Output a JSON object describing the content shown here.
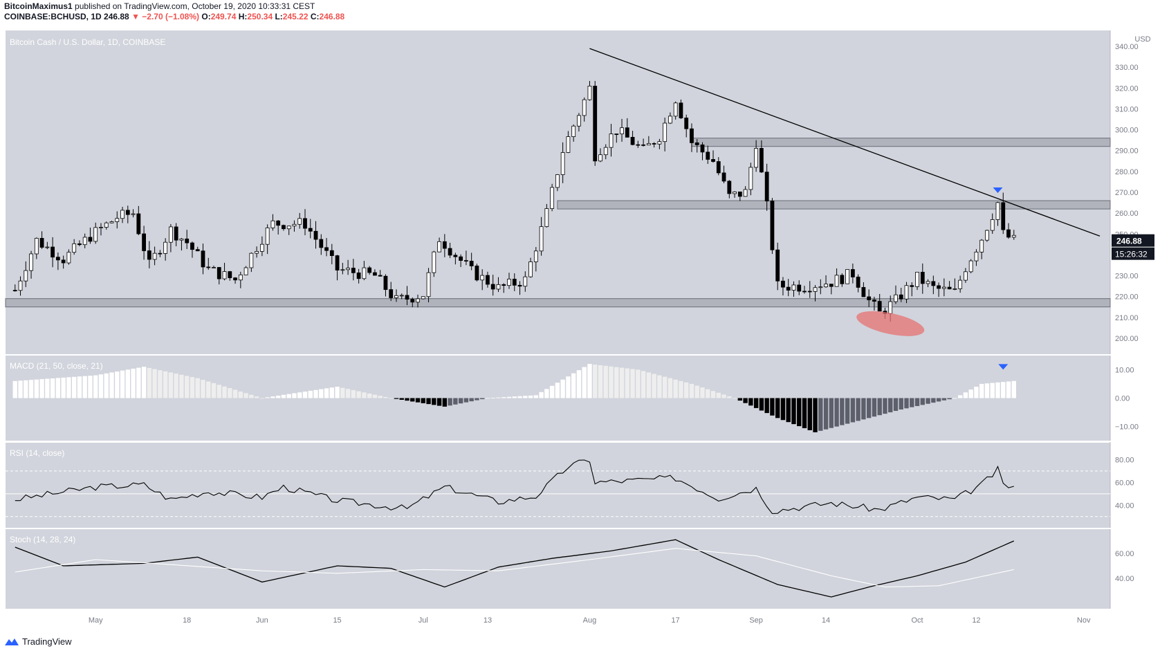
{
  "header": {
    "author": "BitcoinMaximus1",
    "published": "published on TradingView.com, October 19, 2020 10:33:31 CEST",
    "symbol": "COINBASE:BCHUSD, 1D",
    "last": "246.88",
    "change": "▼ −2.70 (−1.08%)",
    "o_label": "O:",
    "o": "249.74",
    "h_label": "H:",
    "h": "250.34",
    "l_label": "L:",
    "l": "245.22",
    "c_label": "C:",
    "c": "246.88"
  },
  "footer": {
    "brand": "TradingView"
  },
  "colors": {
    "pane_bg": "#d1d4dc",
    "candle_up": "#ffffff",
    "candle_down": "#000000",
    "zone": "#9598a1",
    "highlight": "#e57373",
    "marker": "#2962ff"
  },
  "chart_data": [
    {
      "type": "candlestick",
      "title": "Bitcoin Cash / U.S. Dollar, 1D, COINBASE",
      "currency_label": "USD",
      "ylim": [
        195,
        345
      ],
      "y_ticks": [
        "340.00",
        "330.00",
        "320.00",
        "310.00",
        "300.00",
        "290.00",
        "280.00",
        "270.00",
        "260.00",
        "250.00",
        "240.00",
        "230.00",
        "220.00",
        "210.00",
        "200.00"
      ],
      "x_ticks": [
        "May",
        "18",
        "Jun",
        "15",
        "Jul",
        "13",
        "Aug",
        "17",
        "Sep",
        "14",
        "Oct",
        "12",
        "Nov"
      ],
      "x_tick_dates": [
        "2020-05-01",
        "2020-05-18",
        "2020-06-01",
        "2020-06-15",
        "2020-07-01",
        "2020-07-13",
        "2020-08-01",
        "2020-08-17",
        "2020-09-01",
        "2020-09-14",
        "2020-10-01",
        "2020-10-12",
        "2020-11-01"
      ],
      "last_price_label": "246.88",
      "countdown_label": "15:26:32",
      "close_series": [
        {
          "date": "2020-04-16",
          "close": 223
        },
        {
          "date": "2020-04-20",
          "close": 247
        },
        {
          "date": "2020-04-25",
          "close": 238
        },
        {
          "date": "2020-04-30",
          "close": 249
        },
        {
          "date": "2020-05-05",
          "close": 258
        },
        {
          "date": "2020-05-08",
          "close": 260
        },
        {
          "date": "2020-05-11",
          "close": 235
        },
        {
          "date": "2020-05-15",
          "close": 252
        },
        {
          "date": "2020-05-18",
          "close": 246
        },
        {
          "date": "2020-05-22",
          "close": 233
        },
        {
          "date": "2020-05-27",
          "close": 228
        },
        {
          "date": "2020-06-01",
          "close": 248
        },
        {
          "date": "2020-06-03",
          "close": 255
        },
        {
          "date": "2020-06-09",
          "close": 255
        },
        {
          "date": "2020-06-15",
          "close": 233
        },
        {
          "date": "2020-06-22",
          "close": 230
        },
        {
          "date": "2020-06-26",
          "close": 218
        },
        {
          "date": "2020-07-01",
          "close": 221
        },
        {
          "date": "2020-07-04",
          "close": 248
        },
        {
          "date": "2020-07-10",
          "close": 232
        },
        {
          "date": "2020-07-15",
          "close": 224
        },
        {
          "date": "2020-07-20",
          "close": 228
        },
        {
          "date": "2020-07-24",
          "close": 260
        },
        {
          "date": "2020-07-27",
          "close": 290
        },
        {
          "date": "2020-08-01",
          "close": 320
        },
        {
          "date": "2020-08-02",
          "close": 288
        },
        {
          "date": "2020-08-06",
          "close": 300
        },
        {
          "date": "2020-08-11",
          "close": 290
        },
        {
          "date": "2020-08-14",
          "close": 297
        },
        {
          "date": "2020-08-17",
          "close": 315
        },
        {
          "date": "2020-08-20",
          "close": 294
        },
        {
          "date": "2020-08-24",
          "close": 285
        },
        {
          "date": "2020-08-27",
          "close": 268
        },
        {
          "date": "2020-08-30",
          "close": 270
        },
        {
          "date": "2020-09-01",
          "close": 294
        },
        {
          "date": "2020-09-03",
          "close": 263
        },
        {
          "date": "2020-09-05",
          "close": 225
        },
        {
          "date": "2020-09-10",
          "close": 225
        },
        {
          "date": "2020-09-15",
          "close": 227
        },
        {
          "date": "2020-09-19",
          "close": 231
        },
        {
          "date": "2020-09-22",
          "close": 218
        },
        {
          "date": "2020-09-24",
          "close": 212
        },
        {
          "date": "2020-09-27",
          "close": 218
        },
        {
          "date": "2020-10-01",
          "close": 229
        },
        {
          "date": "2020-10-04",
          "close": 224
        },
        {
          "date": "2020-10-08",
          "close": 222
        },
        {
          "date": "2020-10-10",
          "close": 234
        },
        {
          "date": "2020-10-13",
          "close": 248
        },
        {
          "date": "2020-10-16",
          "close": 265
        },
        {
          "date": "2020-10-17",
          "close": 250
        },
        {
          "date": "2020-10-19",
          "close": 246.88
        }
      ],
      "horizontal_zones": [
        {
          "from": 215,
          "to": 219
        },
        {
          "from": 262,
          "to": 266
        },
        {
          "from": 292,
          "to": 296
        }
      ],
      "trendline": [
        {
          "date": "2020-08-01",
          "price": 339
        },
        {
          "date": "2020-11-04",
          "price": 249
        }
      ],
      "highlight_ellipse": {
        "date": "2020-09-26",
        "price": 207
      },
      "markers": [
        {
          "date": "2020-10-16",
          "price": 271,
          "shape": "down-triangle"
        }
      ]
    },
    {
      "type": "bar",
      "title": "MACD (21, 50, close, 21)",
      "ylim": [
        -13,
        13
      ],
      "y_ticks": [
        "10.00",
        "0.00",
        "−10.00"
      ],
      "histogram_series": [
        {
          "date": "2020-04-16",
          "value": 6
        },
        {
          "date": "2020-05-01",
          "value": 8
        },
        {
          "date": "2020-05-10",
          "value": 11
        },
        {
          "date": "2020-05-20",
          "value": 7
        },
        {
          "date": "2020-06-01",
          "value": 0
        },
        {
          "date": "2020-06-15",
          "value": 4
        },
        {
          "date": "2020-06-25",
          "value": 0
        },
        {
          "date": "2020-07-05",
          "value": -3
        },
        {
          "date": "2020-07-13",
          "value": 0
        },
        {
          "date": "2020-07-22",
          "value": 1
        },
        {
          "date": "2020-08-01",
          "value": 12
        },
        {
          "date": "2020-08-10",
          "value": 10
        },
        {
          "date": "2020-08-20",
          "value": 5
        },
        {
          "date": "2020-08-28",
          "value": 0
        },
        {
          "date": "2020-09-05",
          "value": -7
        },
        {
          "date": "2020-09-12",
          "value": -12
        },
        {
          "date": "2020-09-20",
          "value": -8
        },
        {
          "date": "2020-09-28",
          "value": -4
        },
        {
          "date": "2020-10-08",
          "value": 0
        },
        {
          "date": "2020-10-13",
          "value": 5
        },
        {
          "date": "2020-10-19",
          "value": 6
        }
      ],
      "markers": [
        {
          "date": "2020-10-17",
          "value": 10,
          "shape": "down-triangle"
        }
      ]
    },
    {
      "type": "line",
      "title": "RSI (14, close)",
      "ylim": [
        25,
        90
      ],
      "y_ticks": [
        "80.00",
        "60.00",
        "40.00"
      ],
      "bands": [
        30,
        50,
        70
      ],
      "series": [
        {
          "values_by_date": [
            {
              "date": "2020-04-16",
              "value": 45
            },
            {
              "date": "2020-05-01",
              "value": 56
            },
            {
              "date": "2020-05-10",
              "value": 58
            },
            {
              "date": "2020-05-15",
              "value": 45
            },
            {
              "date": "2020-05-22",
              "value": 52
            },
            {
              "date": "2020-06-01",
              "value": 47
            },
            {
              "date": "2020-06-05",
              "value": 56
            },
            {
              "date": "2020-06-15",
              "value": 44
            },
            {
              "date": "2020-06-28",
              "value": 37
            },
            {
              "date": "2020-07-05",
              "value": 56
            },
            {
              "date": "2020-07-15",
              "value": 43
            },
            {
              "date": "2020-07-22",
              "value": 48
            },
            {
              "date": "2020-07-28",
              "value": 74
            },
            {
              "date": "2020-08-01",
              "value": 80
            },
            {
              "date": "2020-08-02",
              "value": 60
            },
            {
              "date": "2020-08-10",
              "value": 62
            },
            {
              "date": "2020-08-17",
              "value": 64
            },
            {
              "date": "2020-08-25",
              "value": 46
            },
            {
              "date": "2020-09-01",
              "value": 55
            },
            {
              "date": "2020-09-04",
              "value": 35
            },
            {
              "date": "2020-09-15",
              "value": 42
            },
            {
              "date": "2020-09-24",
              "value": 36
            },
            {
              "date": "2020-10-01",
              "value": 47
            },
            {
              "date": "2020-10-08",
              "value": 45
            },
            {
              "date": "2020-10-13",
              "value": 58
            },
            {
              "date": "2020-10-16",
              "value": 71
            },
            {
              "date": "2020-10-17",
              "value": 58
            },
            {
              "date": "2020-10-19",
              "value": 56
            }
          ]
        }
      ]
    },
    {
      "type": "line",
      "title": "Stoch (14, 28, 24)",
      "ylim": [
        20,
        75
      ],
      "y_ticks": [
        "60.00",
        "40.00"
      ],
      "series": [
        {
          "values_by_date": [
            {
              "date": "2020-04-16",
              "value": 65
            },
            {
              "date": "2020-04-25",
              "value": 50
            },
            {
              "date": "2020-05-10",
              "value": 52
            },
            {
              "date": "2020-05-20",
              "value": 57
            },
            {
              "date": "2020-06-01",
              "value": 37
            },
            {
              "date": "2020-06-15",
              "value": 50
            },
            {
              "date": "2020-06-25",
              "value": 48
            },
            {
              "date": "2020-07-05",
              "value": 33
            },
            {
              "date": "2020-07-15",
              "value": 49
            },
            {
              "date": "2020-07-25",
              "value": 56
            },
            {
              "date": "2020-08-05",
              "value": 62
            },
            {
              "date": "2020-08-17",
              "value": 71
            },
            {
              "date": "2020-08-25",
              "value": 55
            },
            {
              "date": "2020-09-05",
              "value": 35
            },
            {
              "date": "2020-09-15",
              "value": 25
            },
            {
              "date": "2020-09-22",
              "value": 33
            },
            {
              "date": "2020-10-01",
              "value": 42
            },
            {
              "date": "2020-10-10",
              "value": 53
            },
            {
              "date": "2020-10-19",
              "value": 70
            }
          ]
        },
        {
          "values_by_date": [
            {
              "date": "2020-04-16",
              "value": 45
            },
            {
              "date": "2020-05-01",
              "value": 55
            },
            {
              "date": "2020-05-15",
              "value": 51
            },
            {
              "date": "2020-06-01",
              "value": 46
            },
            {
              "date": "2020-06-15",
              "value": 44
            },
            {
              "date": "2020-07-01",
              "value": 47
            },
            {
              "date": "2020-07-15",
              "value": 46
            },
            {
              "date": "2020-08-01",
              "value": 55
            },
            {
              "date": "2020-08-17",
              "value": 64
            },
            {
              "date": "2020-09-01",
              "value": 58
            },
            {
              "date": "2020-09-15",
              "value": 42
            },
            {
              "date": "2020-09-25",
              "value": 33
            },
            {
              "date": "2020-10-05",
              "value": 34
            },
            {
              "date": "2020-10-19",
              "value": 47
            }
          ]
        }
      ]
    }
  ]
}
